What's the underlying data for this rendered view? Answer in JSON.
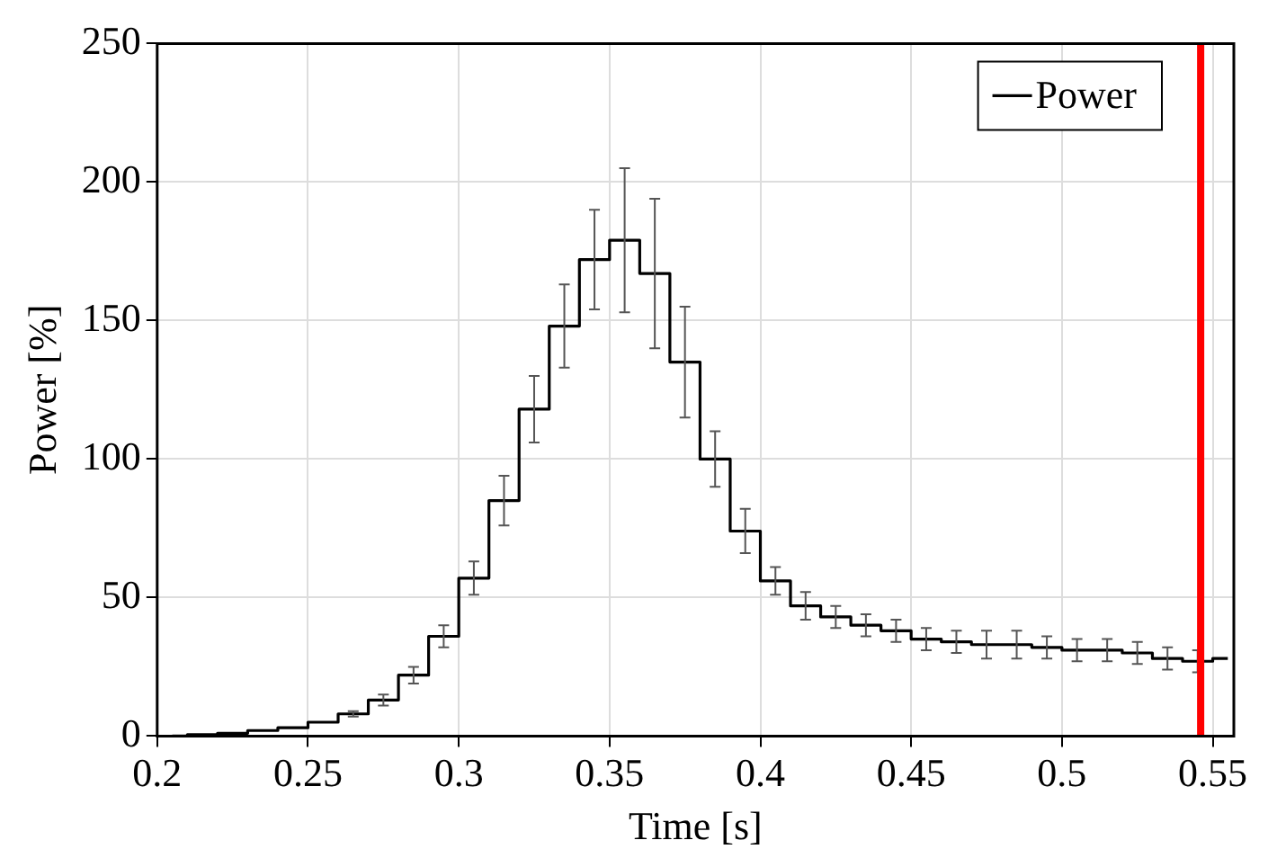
{
  "chart_data": {
    "type": "step",
    "xlabel": "Time [s]",
    "ylabel": "Power [%]",
    "x": [
      0.205,
      0.215,
      0.225,
      0.235,
      0.245,
      0.255,
      0.265,
      0.275,
      0.285,
      0.295,
      0.305,
      0.315,
      0.325,
      0.335,
      0.345,
      0.355,
      0.365,
      0.375,
      0.385,
      0.395,
      0.405,
      0.415,
      0.425,
      0.435,
      0.445,
      0.455,
      0.465,
      0.475,
      0.485,
      0.495,
      0.505,
      0.515,
      0.525,
      0.535,
      0.545,
      0.555
    ],
    "series": [
      {
        "name": "Power",
        "color": "#000000",
        "values": [
          0,
          0.5,
          1,
          2,
          3,
          5,
          8,
          13,
          22,
          36,
          57,
          85,
          118,
          148,
          172,
          179,
          167,
          135,
          100,
          74,
          56,
          47,
          43,
          40,
          38,
          35,
          34,
          33,
          33,
          32,
          31,
          31,
          30,
          28,
          27,
          28
        ],
        "errors": [
          null,
          null,
          null,
          null,
          null,
          null,
          1,
          2,
          3,
          4,
          6,
          9,
          12,
          15,
          18,
          26,
          27,
          20,
          10,
          8,
          5,
          5,
          4,
          4,
          4,
          4,
          4,
          5,
          5,
          4,
          4,
          4,
          4,
          4,
          4,
          null
        ]
      }
    ],
    "xlim": [
      0.2,
      0.557
    ],
    "ylim": [
      0,
      250
    ],
    "xticks": [
      0.2,
      0.25,
      0.3,
      0.35,
      0.4,
      0.45,
      0.5,
      0.55
    ],
    "yticks": [
      0,
      50,
      100,
      150,
      200,
      250
    ],
    "ref_lines": [
      {
        "axis": "x",
        "value": 0.546,
        "color": "#ff0000"
      }
    ],
    "grid": true,
    "legend": "top right",
    "marker": "none",
    "line_style": "solid"
  }
}
